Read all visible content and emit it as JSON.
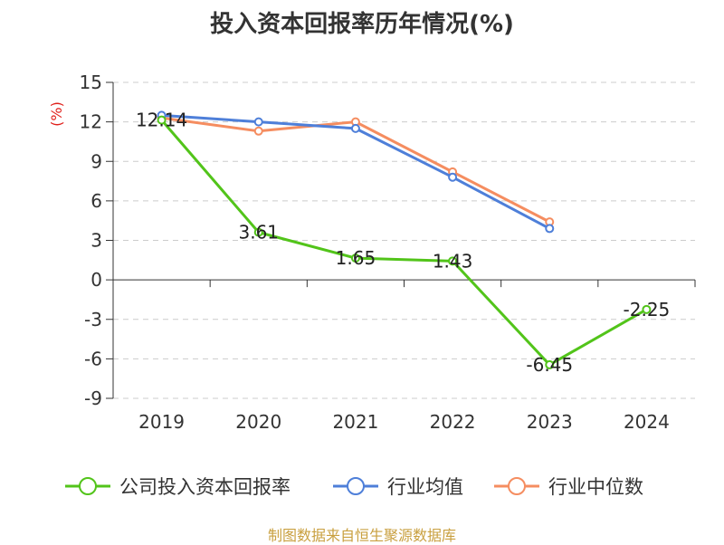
{
  "chart_data": {
    "type": "line",
    "title": "投入资本回报率历年情况(%)",
    "ylabel": "(%)",
    "categories": [
      "2019",
      "2020",
      "2021",
      "2022",
      "2023",
      "2024"
    ],
    "ylim": [
      -9,
      15
    ],
    "yticks": [
      15,
      12,
      9,
      6,
      3,
      0,
      -3,
      -6,
      -9
    ],
    "grid": true,
    "legend_position": "bottom",
    "series": [
      {
        "name": "公司投入资本回报率",
        "color": "#52c41a",
        "values": [
          12.14,
          3.61,
          1.65,
          1.43,
          -6.45,
          -2.25
        ],
        "labels": [
          "12.14",
          "3.61",
          "1.65",
          "1.43",
          "-6.45",
          "-2.25"
        ]
      },
      {
        "name": "行业均值",
        "color": "#4e7fd9",
        "values": [
          12.5,
          12.0,
          11.5,
          7.8,
          3.9,
          null
        ]
      },
      {
        "name": "行业中位数",
        "color": "#f58d60",
        "values": [
          12.3,
          11.3,
          12.0,
          8.2,
          4.4,
          null
        ]
      }
    ]
  },
  "footer": {
    "source": "制图数据来自恒生聚源数据库"
  }
}
